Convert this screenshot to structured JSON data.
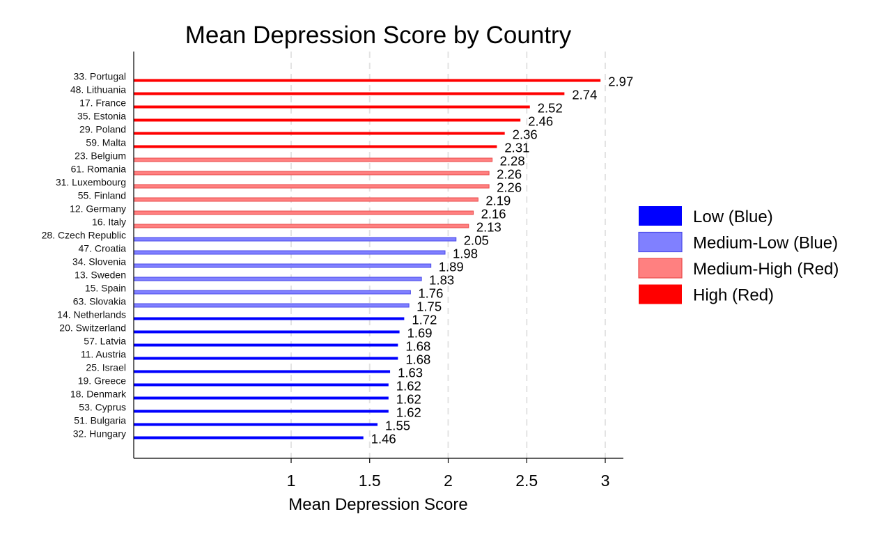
{
  "chart_data": {
    "type": "bar",
    "orientation": "horizontal",
    "title": "Mean Depression Score by Country",
    "xlabel": "Mean Depression Score",
    "ylabel": "",
    "xlim": [
      0.0,
      3.12
    ],
    "xticks": [
      1,
      1.5,
      2,
      2.5,
      3
    ],
    "xtick_labels": [
      "1",
      "1.5",
      "2",
      "2.5",
      "3"
    ],
    "grid": "vertical dashed",
    "legend_position": "right",
    "categories": [
      "33. Portugal",
      "48. Lithuania",
      "17. France",
      "35. Estonia",
      "29. Poland",
      "59. Malta",
      "23. Belgium",
      "61. Romania",
      "31. Luxembourg",
      "55. Finland",
      "12. Germany",
      "16. Italy",
      "28. Czech Republic",
      "47. Croatia",
      "34. Slovenia",
      "13. Sweden",
      "15. Spain",
      "63. Slovakia",
      "14. Netherlands",
      "20. Switzerland",
      "57. Latvia",
      "11. Austria",
      "25. Israel",
      "19. Greece",
      "18. Denmark",
      "53. Cyprus",
      "51. Bulgaria",
      "32. Hungary"
    ],
    "values": [
      2.97,
      2.74,
      2.52,
      2.46,
      2.36,
      2.31,
      2.28,
      2.26,
      2.26,
      2.19,
      2.16,
      2.13,
      2.05,
      1.98,
      1.89,
      1.83,
      1.76,
      1.75,
      1.72,
      1.69,
      1.68,
      1.68,
      1.63,
      1.62,
      1.62,
      1.62,
      1.55,
      1.46
    ],
    "value_labels": [
      "2.97",
      "2.74",
      "2.52",
      "2.46",
      "2.36",
      "2.31",
      "2.28",
      "2.26",
      "2.26",
      "2.19",
      "2.16",
      "2.13",
      "2.05",
      "1.98",
      "1.89",
      "1.83",
      "1.76",
      "1.75",
      "1.72",
      "1.69",
      "1.68",
      "1.68",
      "1.63",
      "1.62",
      "1.62",
      "1.62",
      "1.55",
      "1.46"
    ],
    "groups": [
      "high",
      "high",
      "high",
      "high",
      "high",
      "high",
      "medium-high",
      "medium-high",
      "medium-high",
      "medium-high",
      "medium-high",
      "medium-high",
      "medium-low",
      "medium-low",
      "medium-low",
      "medium-low",
      "medium-low",
      "medium-low",
      "low",
      "low",
      "low",
      "low",
      "low",
      "low",
      "low",
      "low",
      "low",
      "low"
    ],
    "legend": [
      {
        "key": "low",
        "label": "Low (Blue)",
        "color": "#0000ff"
      },
      {
        "key": "medium-low",
        "label": "Medium-Low (Blue)",
        "color": "#8080ff"
      },
      {
        "key": "medium-high",
        "label": "Medium-High (Red)",
        "color": "#ff8080"
      },
      {
        "key": "high",
        "label": "High (Red)",
        "color": "#ff0000"
      }
    ],
    "colors": {
      "high": "#ff0000",
      "medium-high": "#ff8080",
      "medium-low": "#8080ff",
      "low": "#0000ff",
      "medium-high-edge": "#e84a4a",
      "medium-low-edge": "#4a4ae8",
      "grid": "#e3e3e3"
    }
  }
}
